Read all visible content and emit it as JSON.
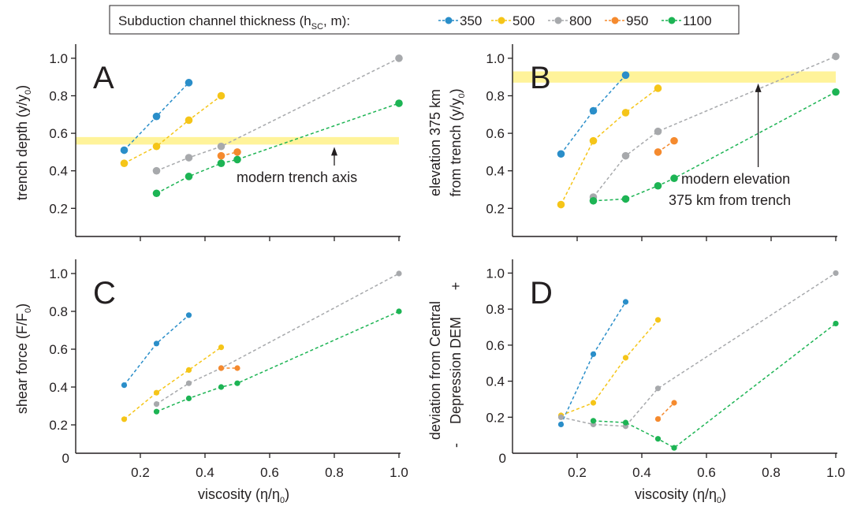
{
  "legend": {
    "title": "Subduction channel thickness (h",
    "title_sub": "SC",
    "title_end": ", m):",
    "entries": [
      {
        "label": "350",
        "color": "#2a8ec9"
      },
      {
        "label": "500",
        "color": "#f5c518"
      },
      {
        "label": "800",
        "color": "#a7a9ac"
      },
      {
        "label": "950",
        "color": "#f58a2e"
      },
      {
        "label": "1100",
        "color": "#1db454"
      }
    ]
  },
  "band_color": "#fff39a",
  "chart_data": [
    {
      "type": "line",
      "panel": "A",
      "xlabel": "",
      "ylabel": "trench depth (y/y",
      "ylabel_sub": "0",
      "ylabel_end": ")",
      "xlim": [
        0,
        1.0
      ],
      "ylim": [
        0.05,
        1.05
      ],
      "yticks": [
        "0.2",
        "0.4",
        "0.6",
        "0.8",
        "1.0"
      ],
      "xticks": [
        "",
        "",
        "",
        "",
        ""
      ],
      "band": [
        0.54,
        0.58
      ],
      "annotation": {
        "text": "modern trench axis",
        "arrow_x": 0.8
      },
      "series": [
        {
          "name": "350",
          "x": [
            0.15,
            0.25,
            0.35
          ],
          "y": [
            0.51,
            0.69,
            0.87
          ]
        },
        {
          "name": "500",
          "x": [
            0.15,
            0.25,
            0.35,
            0.45
          ],
          "y": [
            0.44,
            0.53,
            0.67,
            0.8
          ]
        },
        {
          "name": "800",
          "x": [
            0.25,
            0.35,
            0.45,
            1.0
          ],
          "y": [
            0.4,
            0.47,
            0.53,
            1.0
          ]
        },
        {
          "name": "950",
          "x": [
            0.45,
            0.5
          ],
          "y": [
            0.48,
            0.5
          ]
        },
        {
          "name": "1100",
          "x": [
            0.25,
            0.35,
            0.45,
            0.5,
            1.0
          ],
          "y": [
            0.28,
            0.37,
            0.44,
            0.46,
            0.76
          ]
        }
      ]
    },
    {
      "type": "line",
      "panel": "B",
      "xlabel": "",
      "ylabel": "elevation 375 km",
      "ylabel2": "from trench (y/y",
      "ylabel_sub": "0",
      "ylabel_end": ")",
      "xlim": [
        0,
        1.0
      ],
      "ylim": [
        0.05,
        1.05
      ],
      "yticks": [
        "0.2",
        "0.4",
        "0.6",
        "0.8",
        "1.0"
      ],
      "xticks": [
        "",
        "",
        "",
        "",
        ""
      ],
      "band": [
        0.87,
        0.93
      ],
      "annotation": {
        "text": "modern elevation",
        "text2": "375 km from trench",
        "arrow_x": 0.76
      },
      "series": [
        {
          "name": "350",
          "x": [
            0.15,
            0.25,
            0.35
          ],
          "y": [
            0.49,
            0.72,
            0.91
          ]
        },
        {
          "name": "500",
          "x": [
            0.15,
            0.25,
            0.35,
            0.45
          ],
          "y": [
            0.22,
            0.56,
            0.71,
            0.84
          ]
        },
        {
          "name": "800",
          "x": [
            0.25,
            0.35,
            0.45,
            1.0
          ],
          "y": [
            0.26,
            0.48,
            0.61,
            1.01
          ]
        },
        {
          "name": "950",
          "x": [
            0.45,
            0.5
          ],
          "y": [
            0.5,
            0.56
          ]
        },
        {
          "name": "1100",
          "x": [
            0.25,
            0.35,
            0.45,
            0.5,
            1.0
          ],
          "y": [
            0.24,
            0.25,
            0.32,
            0.36,
            0.82
          ]
        }
      ]
    },
    {
      "type": "line",
      "panel": "C",
      "xlabel": "viscosity (η/η",
      "xlabel_sub": "0",
      "xlabel_end": ")",
      "ylabel": "shear force (F/F",
      "ylabel_sub": "0",
      "ylabel_end": ")",
      "xlim": [
        0,
        1.0
      ],
      "ylim": [
        0.05,
        1.05
      ],
      "origin_label": "0",
      "yticks": [
        "0.2",
        "0.4",
        "0.6",
        "0.8",
        "1.0"
      ],
      "xticks": [
        "0.2",
        "0.4",
        "0.6",
        "0.8",
        "1.0"
      ],
      "series": [
        {
          "name": "350",
          "x": [
            0.15,
            0.25,
            0.35
          ],
          "y": [
            0.41,
            0.63,
            0.78
          ]
        },
        {
          "name": "500",
          "x": [
            0.15,
            0.25,
            0.35,
            0.45
          ],
          "y": [
            0.23,
            0.37,
            0.49,
            0.61
          ]
        },
        {
          "name": "800",
          "x": [
            0.25,
            0.35,
            0.45,
            1.0
          ],
          "y": [
            0.31,
            0.42,
            0.5,
            1.0
          ]
        },
        {
          "name": "950",
          "x": [
            0.45,
            0.5
          ],
          "y": [
            0.5,
            0.5
          ]
        },
        {
          "name": "1100",
          "x": [
            0.25,
            0.35,
            0.45,
            0.5,
            1.0
          ],
          "y": [
            0.27,
            0.34,
            0.4,
            0.42,
            0.8
          ]
        }
      ]
    },
    {
      "type": "line",
      "panel": "D",
      "xlabel": "viscosity (η/η",
      "xlabel_sub": "0",
      "xlabel_end": ")",
      "ylabel": "deviation from Central",
      "ylabel2": "Depression DEM",
      "ylabel_plus": "+",
      "ylabel_minus": "-",
      "xlim": [
        0,
        1.0
      ],
      "ylim": [
        0.0,
        1.05
      ],
      "origin_label": "0",
      "yticks": [
        "0.2",
        "0.4",
        "0.6",
        "0.8",
        "1.0"
      ],
      "xticks": [
        "0.2",
        "0.4",
        "0.6",
        "0.8",
        "1.0"
      ],
      "series": [
        {
          "name": "350",
          "x": [
            0.15,
            0.25,
            0.35
          ],
          "y": [
            0.16,
            0.55,
            0.84
          ]
        },
        {
          "name": "500",
          "x": [
            0.15,
            0.25,
            0.35,
            0.45
          ],
          "y": [
            0.21,
            0.28,
            0.53,
            0.74
          ]
        },
        {
          "name": "800",
          "x": [
            0.15,
            0.25,
            0.35,
            0.45,
            1.0
          ],
          "y": [
            0.2,
            0.16,
            0.15,
            0.36,
            1.0
          ]
        },
        {
          "name": "950",
          "x": [
            0.45,
            0.5
          ],
          "y": [
            0.19,
            0.28
          ]
        },
        {
          "name": "1100",
          "x": [
            0.25,
            0.35,
            0.45,
            0.5,
            1.0
          ],
          "y": [
            0.18,
            0.17,
            0.08,
            0.03,
            0.72
          ]
        }
      ]
    }
  ]
}
